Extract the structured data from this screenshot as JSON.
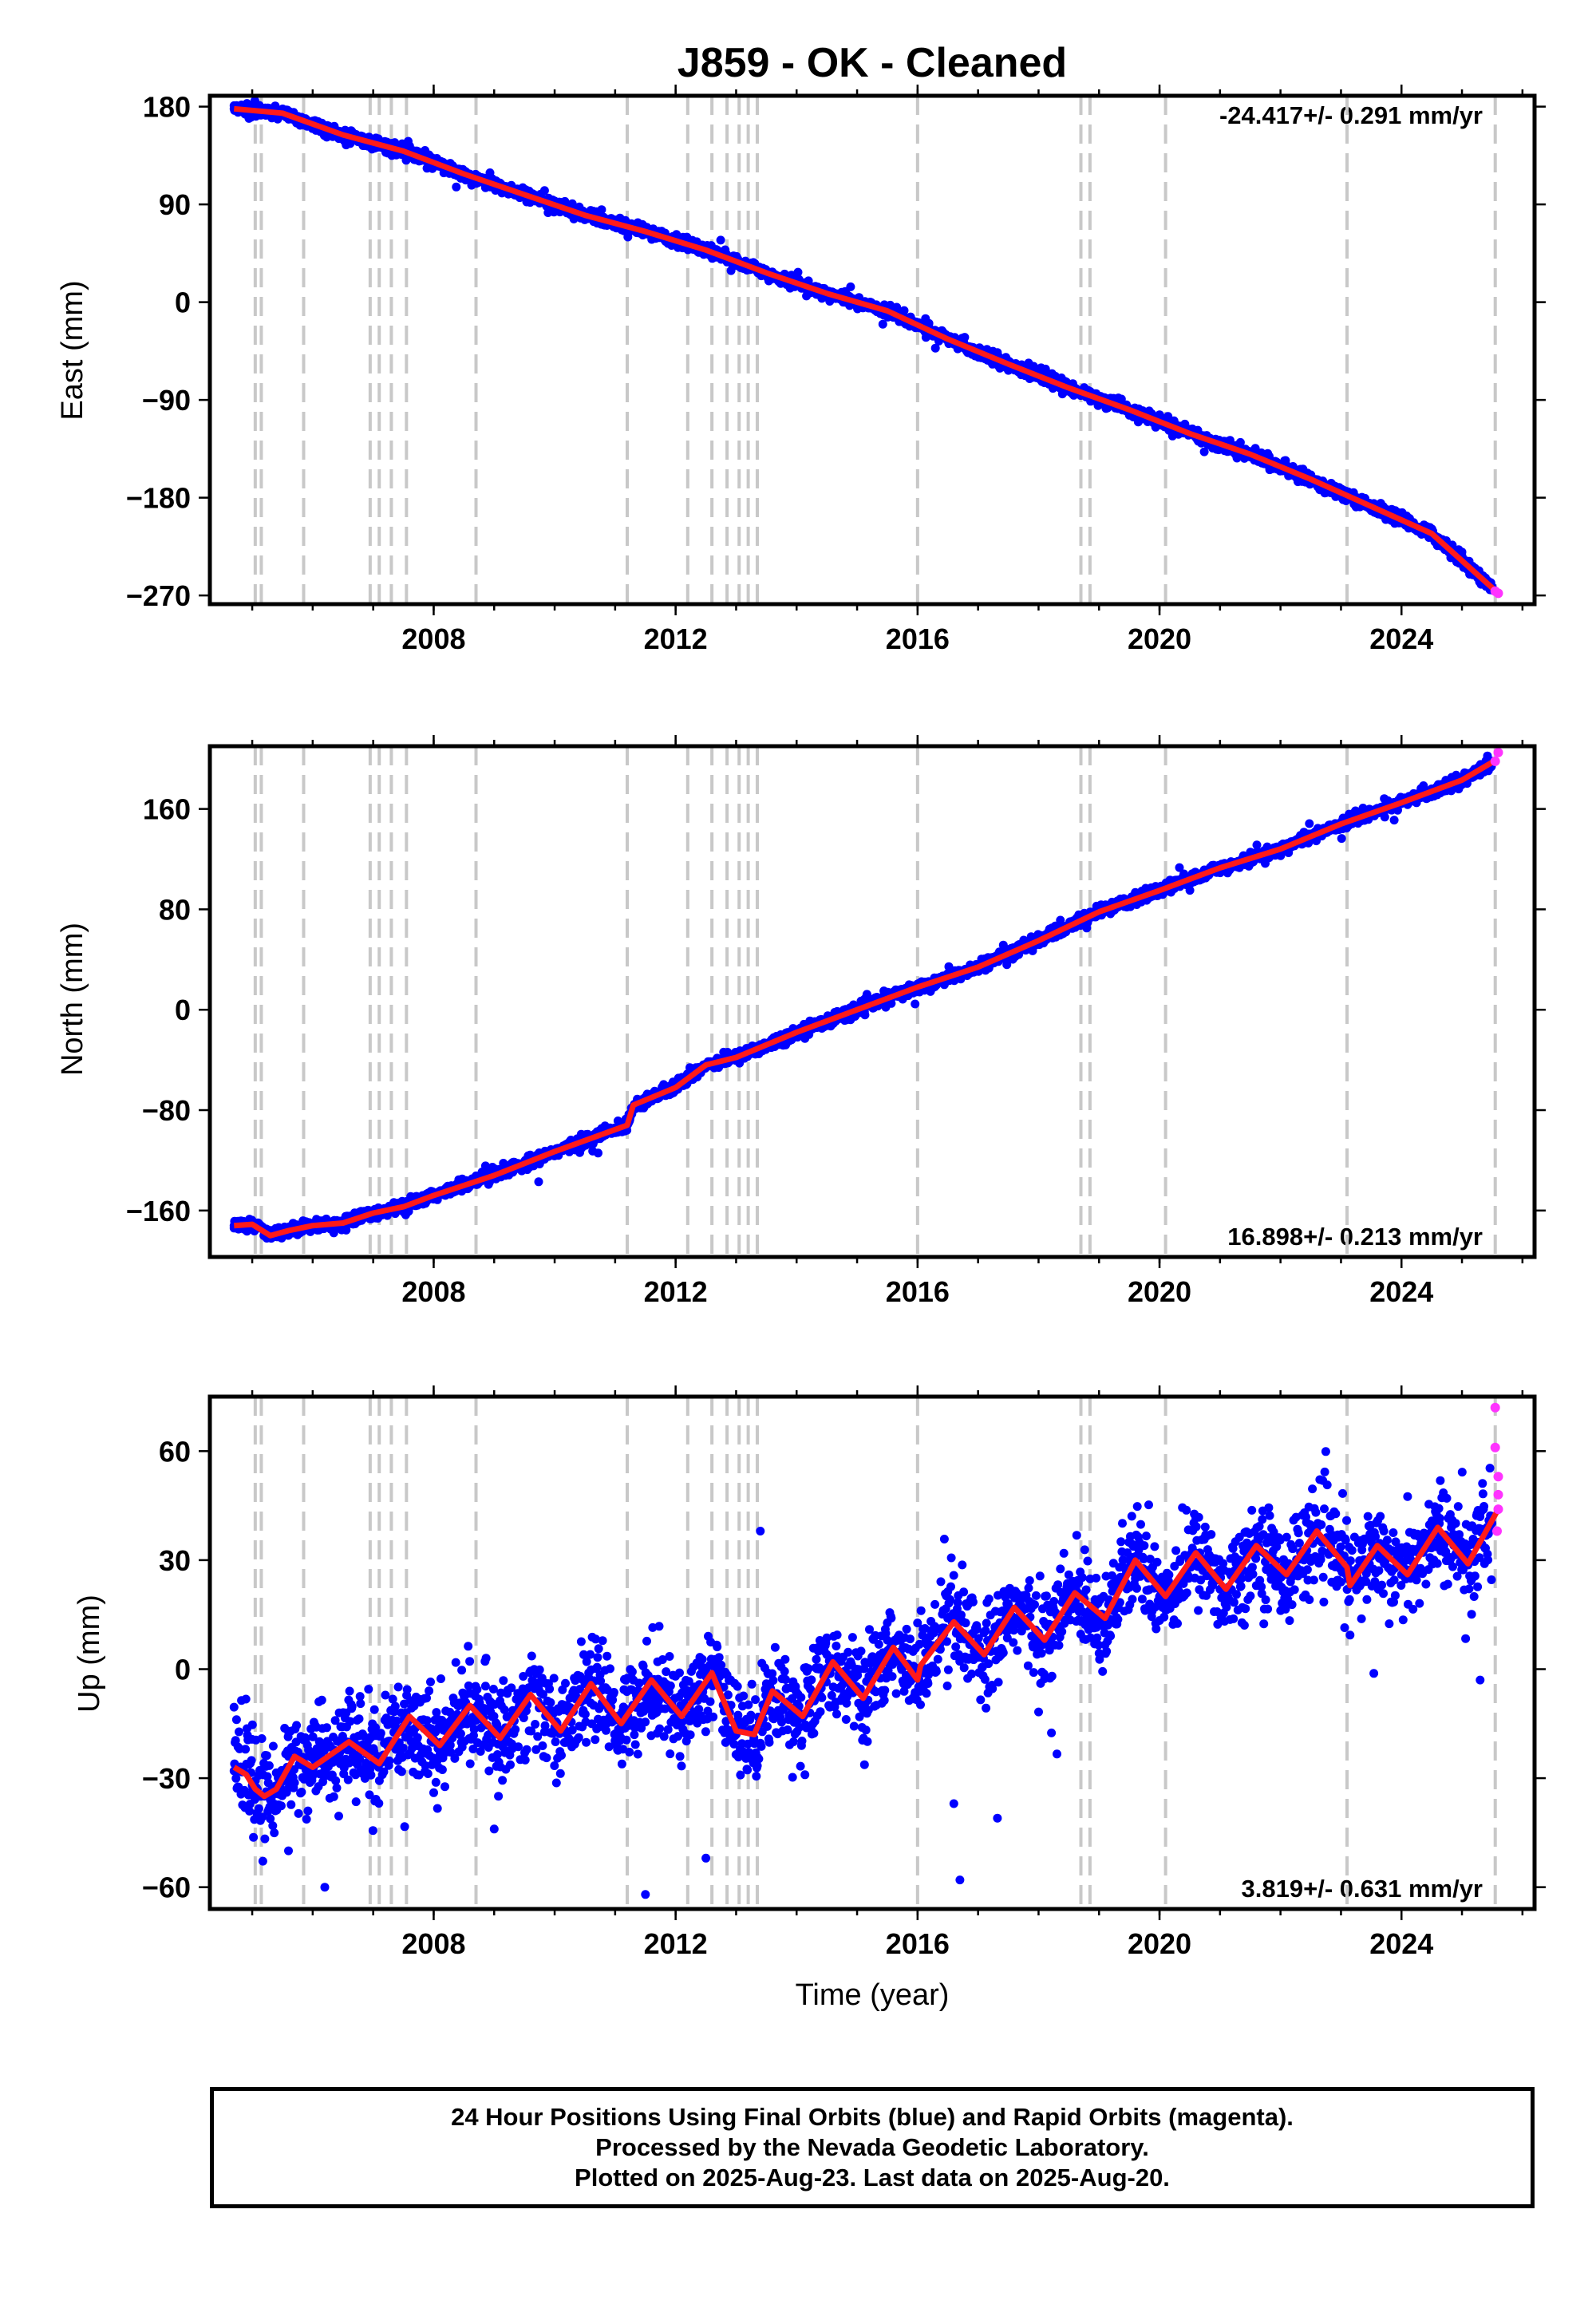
{
  "chart_data": [
    {
      "type": "scatter",
      "panel": "east",
      "title": "J859  - OK - Cleaned",
      "ylabel": "East (mm)",
      "xlabel": "",
      "xlim": [
        2004.3,
        2026.2
      ],
      "ylim": [
        -278,
        190
      ],
      "x_ticks": [
        "2008",
        "2012",
        "2016",
        "2020",
        "2024"
      ],
      "y_ticks": [
        "180",
        "90",
        "0",
        "−90",
        "−180",
        "−270"
      ],
      "y_tick_values": [
        180,
        90,
        0,
        -90,
        -180,
        -270
      ],
      "rate_label": "-24.417+/- 0.291 mm/yr",
      "rate_position": "top-right",
      "rate_mm_per_yr": -24.417,
      "rate_sigma": 0.291,
      "series": [
        {
          "name": "",
          "color": "#0000ff",
          "x": [
            2004.7,
            2005.0,
            2005.5,
            2006.0,
            2006.5,
            2007.0,
            2007.5,
            2008.0,
            2008.5,
            2009.0,
            2009.5,
            2010.0,
            2010.5,
            2011.0,
            2011.5,
            2012.0,
            2012.5,
            2013.0,
            2013.5,
            2014.0,
            2014.5,
            2015.0,
            2015.5,
            2016.0,
            2016.5,
            2017.0,
            2017.5,
            2018.0,
            2018.5,
            2019.0,
            2019.5,
            2020.0,
            2020.5,
            2021.0,
            2021.5,
            2022.0,
            2022.5,
            2023.0,
            2023.5,
            2024.0,
            2024.5,
            2025.0,
            2025.5
          ],
          "y": [
            178,
            176,
            172,
            162,
            155,
            147,
            140,
            129,
            119,
            111,
            99,
            91,
            81,
            72,
            66,
            58,
            48,
            41,
            27,
            17,
            9,
            0,
            -8,
            -22,
            -33,
            -46,
            -58,
            -70,
            -80,
            -90,
            -99,
            -110,
            -120,
            -130,
            -140,
            -151,
            -163,
            -175,
            -187,
            -200,
            -213,
            -230,
            -262
          ]
        }
      ],
      "fit_line": {
        "color": "#ff0000",
        "x": [
          2004.7,
          2005.5,
          2006.5,
          2007.5,
          2008.5,
          2009.5,
          2010.5,
          2011.5,
          2012.5,
          2013.5,
          2014.5,
          2015.5,
          2016.5,
          2017.5,
          2018.5,
          2019.5,
          2020.5,
          2021.5,
          2022.5,
          2023.5,
          2024.5,
          2025.6
        ],
        "y": [
          178,
          174,
          154,
          139,
          118,
          99,
          80,
          65,
          48,
          27,
          8,
          -8,
          -34,
          -57,
          -79,
          -99,
          -121,
          -140,
          -163,
          -188,
          -213,
          -268
        ]
      },
      "rapid_points": {
        "color": "#ff33ff",
        "x": [
          2025.55,
          2025.6
        ],
        "y": [
          -266,
          -268
        ]
      },
      "event_lines_x": [
        2005.05,
        2005.15,
        2005.85,
        2006.95,
        2007.1,
        2007.3,
        2007.55,
        2008.7,
        2011.2,
        2012.2,
        2012.6,
        2012.85,
        2013.05,
        2013.2,
        2013.35,
        2016.0,
        2018.7,
        2018.85,
        2020.1,
        2023.1,
        2025.55
      ]
    },
    {
      "type": "scatter",
      "panel": "north",
      "title": "",
      "ylabel": "North (mm)",
      "xlabel": "",
      "xlim": [
        2004.3,
        2026.2
      ],
      "ylim": [
        -197,
        210
      ],
      "x_ticks": [
        "2008",
        "2012",
        "2016",
        "2020",
        "2024"
      ],
      "y_ticks": [
        "160",
        "80",
        "0",
        "−80",
        "−160"
      ],
      "y_tick_values": [
        160,
        80,
        0,
        -80,
        -160
      ],
      "rate_label": "16.898+/- 0.213 mm/yr",
      "rate_position": "bottom-right",
      "rate_mm_per_yr": 16.898,
      "rate_sigma": 0.213,
      "series": [
        {
          "name": "",
          "color": "#0000ff",
          "x": [
            2004.7,
            2005.0,
            2005.5,
            2006.0,
            2006.5,
            2007.0,
            2007.5,
            2008.0,
            2008.5,
            2009.0,
            2009.5,
            2010.0,
            2010.5,
            2011.0,
            2011.3,
            2011.5,
            2012.0,
            2012.5,
            2013.0,
            2013.5,
            2014.0,
            2014.5,
            2015.0,
            2015.5,
            2016.0,
            2016.5,
            2017.0,
            2017.5,
            2018.0,
            2018.5,
            2019.0,
            2019.5,
            2020.0,
            2020.5,
            2021.0,
            2021.5,
            2022.0,
            2022.5,
            2023.0,
            2023.5,
            2024.0,
            2024.5,
            2025.0,
            2025.5
          ],
          "y": [
            -174,
            -172,
            -180,
            -175,
            -172,
            -163,
            -157,
            -148,
            -140,
            -131,
            -121,
            -113,
            -106,
            -98,
            -80,
            -70,
            -62,
            -45,
            -38,
            -28,
            -18,
            -8,
            0,
            10,
            18,
            24,
            34,
            42,
            55,
            67,
            78,
            88,
            95,
            104,
            113,
            122,
            128,
            138,
            147,
            158,
            165,
            176,
            183,
            197
          ]
        }
      ],
      "fit_line": {
        "color": "#ff0000",
        "x": [
          2004.7,
          2005.0,
          2005.3,
          2005.6,
          2006.0,
          2006.5,
          2007.0,
          2007.5,
          2008.0,
          2009.0,
          2010.0,
          2011.2,
          2011.3,
          2012.0,
          2012.5,
          2013.0,
          2014.0,
          2015.0,
          2016.0,
          2017.0,
          2018.0,
          2019.0,
          2020.0,
          2021.0,
          2022.0,
          2023.0,
          2024.0,
          2025.0,
          2025.6
        ],
        "y": [
          -172,
          -171,
          -180,
          -176,
          -172,
          -170,
          -162,
          -157,
          -148,
          -132,
          -113,
          -92,
          -76,
          -62,
          -44,
          -38,
          -18,
          0,
          18,
          34,
          55,
          78,
          95,
          113,
          128,
          148,
          165,
          183,
          200
        ]
      },
      "rapid_points": {
        "color": "#ff33ff",
        "x": [
          2025.55,
          2025.6
        ],
        "y": [
          198,
          205
        ]
      },
      "event_lines_x": [
        2005.05,
        2005.15,
        2005.85,
        2006.95,
        2007.1,
        2007.3,
        2007.55,
        2008.7,
        2011.2,
        2012.2,
        2012.6,
        2012.85,
        2013.05,
        2013.2,
        2013.35,
        2016.0,
        2018.7,
        2018.85,
        2020.1,
        2023.1,
        2025.55
      ]
    },
    {
      "type": "scatter",
      "panel": "up",
      "title": "",
      "ylabel": "Up (mm)",
      "xlabel": "Time (year)",
      "xlim": [
        2004.3,
        2026.2
      ],
      "ylim": [
        -66,
        75
      ],
      "x_ticks": [
        "2008",
        "2012",
        "2016",
        "2020",
        "2024"
      ],
      "y_ticks": [
        "60",
        "30",
        "0",
        "−30",
        "−60"
      ],
      "y_tick_values": [
        60,
        30,
        0,
        -30,
        -60
      ],
      "rate_label": "3.819+/- 0.631 mm/yr",
      "rate_position": "bottom-right",
      "rate_mm_per_yr": 3.819,
      "rate_sigma": 0.631,
      "series": [
        {
          "name": "",
          "color": "#0000ff",
          "x": [
            2004.7,
            2005.0,
            2005.3,
            2005.6,
            2006.0,
            2006.5,
            2007.0,
            2007.5,
            2008.0,
            2008.5,
            2009.0,
            2009.5,
            2010.0,
            2010.5,
            2011.0,
            2011.5,
            2012.0,
            2012.5,
            2013.0,
            2013.5,
            2014.0,
            2014.5,
            2015.0,
            2015.5,
            2016.0,
            2016.5,
            2017.0,
            2017.5,
            2018.0,
            2018.5,
            2019.0,
            2019.5,
            2020.0,
            2020.5,
            2021.0,
            2021.5,
            2022.0,
            2022.5,
            2023.0,
            2023.5,
            2024.0,
            2024.5,
            2025.0,
            2025.5
          ],
          "y": [
            -28,
            -32,
            -36,
            -24,
            -28,
            -22,
            -26,
            -14,
            -20,
            -10,
            -18,
            -8,
            -16,
            -4,
            -14,
            -6,
            -14,
            -2,
            -18,
            -4,
            -10,
            4,
            -6,
            8,
            0,
            14,
            6,
            18,
            10,
            22,
            14,
            30,
            20,
            30,
            22,
            34,
            26,
            38,
            24,
            36,
            26,
            40,
            30,
            42
          ],
          "outliers_x": [
            2005.6,
            2006.2,
            2008.0,
            2009.0,
            2011.5,
            2012.5,
            2013.4,
            2016.6,
            2016.7,
            2025.3
          ],
          "outliers_y": [
            -50,
            -60,
            -34,
            -44,
            -62,
            -52,
            38,
            -37,
            -58,
            -3
          ]
        }
      ],
      "fit_line": {
        "color": "#ff0000",
        "x": [
          2004.7,
          2004.9,
          2005.05,
          2005.2,
          2005.4,
          2005.7,
          2006.0,
          2006.6,
          2007.1,
          2007.6,
          2008.1,
          2008.6,
          2009.1,
          2009.6,
          2010.1,
          2010.6,
          2011.1,
          2011.6,
          2012.1,
          2012.6,
          2013.0,
          2013.3,
          2013.6,
          2014.1,
          2014.6,
          2015.1,
          2015.6,
          2016.0,
          2016.05,
          2016.6,
          2017.1,
          2017.6,
          2018.1,
          2018.6,
          2019.1,
          2019.6,
          2020.1,
          2020.6,
          2021.1,
          2021.6,
          2022.1,
          2022.6,
          2023.1,
          2023.15,
          2023.6,
          2024.1,
          2024.6,
          2025.1,
          2025.6
        ],
        "y": [
          -27,
          -29,
          -33,
          -35,
          -33,
          -24,
          -27,
          -20,
          -26,
          -13,
          -21,
          -10,
          -19,
          -7,
          -17,
          -4,
          -15,
          -3,
          -13,
          -1,
          -17,
          -18,
          -6,
          -13,
          2,
          -8,
          6,
          -3,
          1,
          13,
          4,
          17,
          8,
          21,
          14,
          30,
          20,
          32,
          22,
          34,
          26,
          38,
          28,
          23,
          34,
          26,
          39,
          29,
          44
        ]
      },
      "rapid_points": {
        "color": "#ff33ff",
        "x": [
          2025.55,
          2025.55,
          2025.6,
          2025.6,
          2025.6,
          2025.58
        ],
        "y": [
          72,
          61,
          53,
          48,
          44,
          38
        ]
      },
      "event_lines_x": [
        2005.05,
        2005.15,
        2005.85,
        2006.95,
        2007.1,
        2007.3,
        2007.55,
        2008.7,
        2011.2,
        2012.2,
        2012.6,
        2012.85,
        2013.05,
        2013.2,
        2013.35,
        2016.0,
        2018.7,
        2018.85,
        2020.1,
        2023.1,
        2025.55
      ]
    }
  ],
  "footer": {
    "line1": "24 Hour Positions Using Final Orbits (blue) and Rapid Orbits (magenta).",
    "line2": "Processed by the Nevada Geodetic Laboratory.",
    "line3": "Plotted on 2025-Aug-23. Last data on 2025-Aug-20."
  }
}
